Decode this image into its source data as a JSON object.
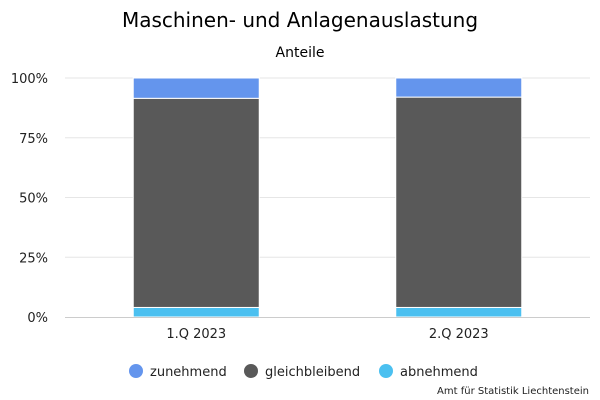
{
  "chart_data": {
    "type": "bar",
    "stacked": true,
    "title": "Maschinen- und Anlagenauslastung",
    "subtitle": "Anteile",
    "categories": [
      "1.Q 2023",
      "2.Q 2023"
    ],
    "series": [
      {
        "name": "zunehmend",
        "values": [
          8.5,
          8
        ],
        "color": "#6495ED"
      },
      {
        "name": "gleichbleibend",
        "values": [
          87.5,
          88
        ],
        "color": "#595959"
      },
      {
        "name": "abnehmend",
        "values": [
          4,
          4
        ],
        "color": "#4BC0F0"
      }
    ],
    "stack_order_bottom_to_top": [
      "abnehmend",
      "gleichbleibend",
      "zunehmend"
    ],
    "ylim": [
      0,
      100
    ],
    "yticks": [
      0,
      25,
      50,
      75,
      100
    ],
    "ytick_labels": [
      "0%",
      "25%",
      "50%",
      "75%",
      "100%"
    ],
    "grid": true,
    "legend": "bottom",
    "credit": "Amt für Statistik Liechtenstein"
  }
}
